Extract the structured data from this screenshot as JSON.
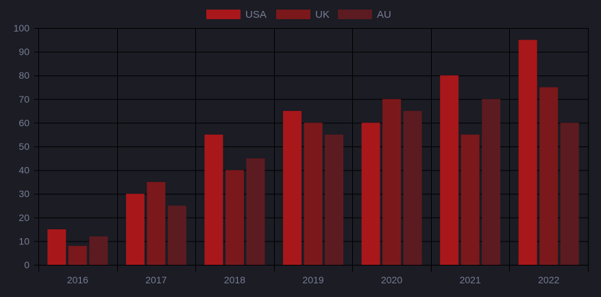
{
  "colors": {
    "background": "#1b1c24",
    "grid": "#000000",
    "text": "#777d93",
    "usa": "#a8171a",
    "uk": "#7b181b",
    "au": "#5c1b20"
  },
  "chart_data": {
    "type": "bar",
    "categories": [
      "2016",
      "2017",
      "2018",
      "2019",
      "2020",
      "2021",
      "2022"
    ],
    "series": [
      {
        "name": "USA",
        "color": "#a8171a",
        "values": [
          15,
          30,
          55,
          65,
          60,
          80,
          95
        ]
      },
      {
        "name": "UK",
        "color": "#7b181b",
        "values": [
          8,
          35,
          40,
          60,
          70,
          55,
          75
        ]
      },
      {
        "name": "AU",
        "color": "#5c1b20",
        "values": [
          12,
          25,
          45,
          55,
          65,
          70,
          60
        ]
      }
    ],
    "ylim": [
      0,
      100
    ],
    "yticks": [
      "0",
      "10",
      "20",
      "30",
      "40",
      "50",
      "60",
      "70",
      "80",
      "90",
      "100"
    ],
    "grid": true,
    "legend_position": "top-center",
    "title": "",
    "xlabel": "",
    "ylabel": ""
  }
}
